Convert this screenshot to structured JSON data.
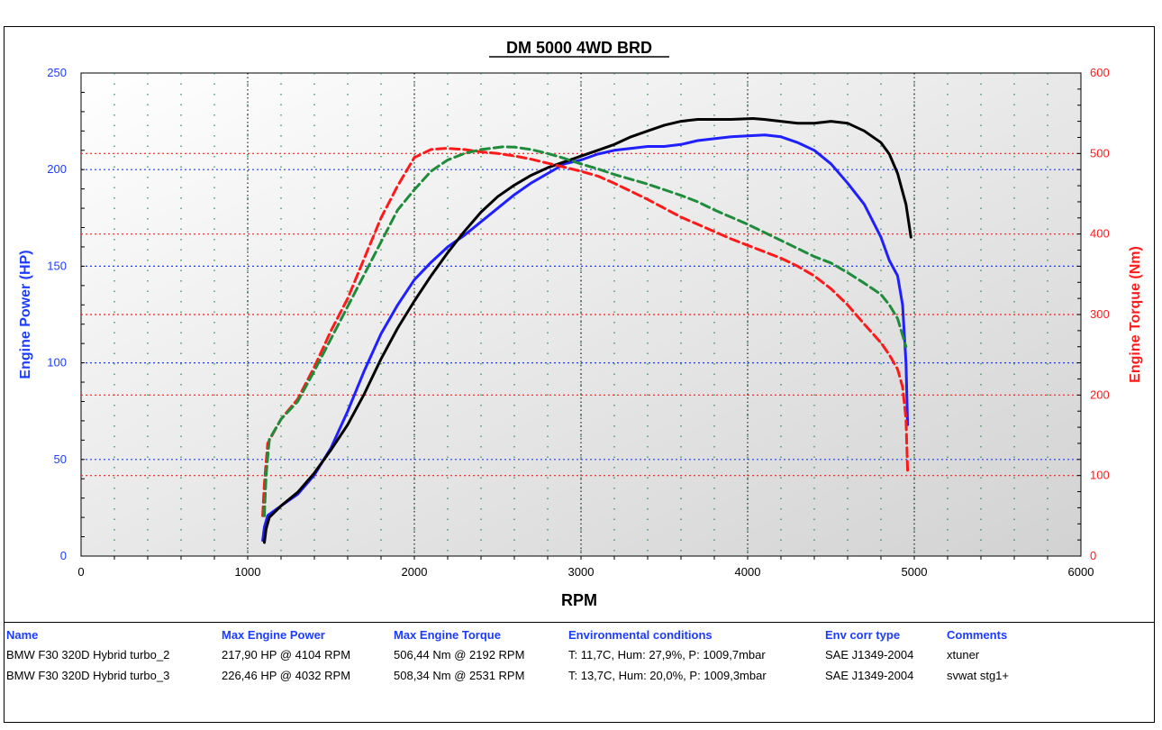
{
  "chart_data": {
    "type": "line",
    "title": "DM 5000 4WD BRD",
    "xlabel": "RPM",
    "ylabel_left": "Engine Power (HP)",
    "ylabel_right": "Engine Torque (Nm)",
    "xlim": [
      0,
      6000
    ],
    "ylim_left": [
      0,
      250
    ],
    "ylim_right": [
      0,
      600
    ],
    "x_ticks": [
      "0",
      "1000",
      "2000",
      "3000",
      "4000",
      "5000",
      "6000"
    ],
    "y_left_ticks": [
      "0",
      "50",
      "100",
      "150",
      "200",
      "250"
    ],
    "y_right_ticks": [
      "0",
      "100",
      "200",
      "300",
      "400",
      "500",
      "600"
    ],
    "grid": true,
    "colors": {
      "left_axis": "#1c3cff",
      "right_axis": "#ff1a1a",
      "plot_bg_light": "#ffffff",
      "plot_bg_dark": "#d2d2d2"
    },
    "series": [
      {
        "axis": "left",
        "quantity": "power",
        "run": "BMW F30 320D Hybrid turbo_2",
        "color": "#1f1fff",
        "dash": "solid",
        "x": [
          1090,
          1100,
          1120,
          1200,
          1300,
          1400,
          1500,
          1600,
          1700,
          1800,
          1900,
          2000,
          2100,
          2200,
          2300,
          2400,
          2500,
          2600,
          2700,
          2800,
          2900,
          3000,
          3100,
          3200,
          3300,
          3400,
          3500,
          3600,
          3700,
          3800,
          3900,
          4000,
          4104,
          4200,
          4300,
          4400,
          4500,
          4600,
          4700,
          4800,
          4850,
          4900,
          4930,
          4950,
          4960
        ],
        "y": [
          8,
          15,
          21,
          26,
          32,
          42,
          56,
          75,
          96,
          115,
          130,
          143,
          152,
          160,
          166,
          173,
          180,
          187,
          193,
          198,
          203,
          205,
          208,
          210,
          211,
          212,
          212,
          213,
          215,
          216,
          217,
          217.5,
          217.9,
          217,
          214,
          210,
          203,
          193,
          182,
          165,
          153,
          145,
          130,
          100,
          68
        ]
      },
      {
        "axis": "left",
        "quantity": "power",
        "run": "BMW F30 320D Hybrid turbo_3",
        "color": "#000000",
        "dash": "solid",
        "x": [
          1100,
          1110,
          1130,
          1200,
          1300,
          1400,
          1500,
          1600,
          1700,
          1800,
          1900,
          2000,
          2100,
          2200,
          2300,
          2400,
          2500,
          2600,
          2700,
          2800,
          2900,
          3000,
          3100,
          3200,
          3300,
          3400,
          3500,
          3600,
          3700,
          3800,
          3900,
          4032,
          4100,
          4200,
          4300,
          4400,
          4500,
          4600,
          4700,
          4800,
          4850,
          4900,
          4950,
          4980
        ],
        "y": [
          7,
          14,
          20,
          26,
          33,
          43,
          55,
          68,
          84,
          102,
          118,
          132,
          145,
          157,
          168,
          178,
          186,
          192,
          197,
          201,
          204,
          207,
          210,
          213,
          217,
          220,
          223,
          225,
          226,
          226,
          226,
          226.46,
          226,
          225,
          224,
          224,
          225,
          224,
          220,
          214,
          208,
          198,
          182,
          165
        ]
      },
      {
        "axis": "right",
        "quantity": "torque",
        "run": "BMW F30 320D Hybrid turbo_2",
        "color": "#ff1a1a",
        "dash": "dashed",
        "x": [
          1090,
          1100,
          1120,
          1200,
          1300,
          1400,
          1500,
          1600,
          1700,
          1800,
          1900,
          2000,
          2100,
          2192,
          2300,
          2400,
          2500,
          2600,
          2700,
          2800,
          2900,
          3000,
          3100,
          3200,
          3300,
          3400,
          3500,
          3600,
          3700,
          3800,
          3900,
          4000,
          4100,
          4200,
          4300,
          4400,
          4500,
          4600,
          4700,
          4800,
          4850,
          4900,
          4930,
          4950,
          4960
        ],
        "y": [
          50,
          90,
          140,
          170,
          195,
          235,
          280,
          320,
          370,
          420,
          460,
          495,
          505,
          506.44,
          505,
          502,
          500,
          497,
          493,
          488,
          483,
          478,
          472,
          463,
          453,
          443,
          432,
          421,
          412,
          403,
          394,
          386,
          378,
          370,
          360,
          348,
          332,
          312,
          288,
          265,
          250,
          232,
          210,
          170,
          105
        ]
      },
      {
        "axis": "right",
        "quantity": "torque",
        "run": "BMW F30 320D Hybrid turbo_3",
        "color": "#1f8c3c",
        "dash": "dashed",
        "x": [
          1100,
          1110,
          1130,
          1200,
          1300,
          1400,
          1500,
          1600,
          1700,
          1800,
          1900,
          2000,
          2100,
          2200,
          2300,
          2400,
          2531,
          2600,
          2700,
          2800,
          2900,
          3000,
          3100,
          3200,
          3300,
          3400,
          3500,
          3600,
          3700,
          3800,
          3900,
          4000,
          4100,
          4200,
          4300,
          4400,
          4500,
          4600,
          4700,
          4800,
          4850,
          4900,
          4950
        ],
        "y": [
          50,
          100,
          145,
          170,
          192,
          230,
          270,
          310,
          350,
          390,
          430,
          455,
          478,
          492,
          500,
          505,
          508.34,
          508,
          505,
          500,
          494,
          487,
          481,
          474,
          468,
          462,
          455,
          448,
          440,
          430,
          421,
          412,
          402,
          392,
          382,
          372,
          364,
          352,
          339,
          325,
          312,
          295,
          260
        ]
      }
    ]
  },
  "results_table": {
    "headers": [
      "Name",
      "Max Engine Power",
      "Max Engine Torque",
      "Environmental conditions",
      "Env corr type",
      "Comments"
    ],
    "rows": [
      [
        "BMW F30 320D Hybrid turbo_2",
        "217,90 HP @ 4104 RPM",
        "506,44 Nm @ 2192 RPM",
        "T: 11,7C, Hum: 27,9%, P: 1009,7mbar",
        "SAE J1349-2004",
        "xtuner"
      ],
      [
        "BMW F30 320D Hybrid turbo_3",
        "226,46 HP @ 4032 RPM",
        "508,34 Nm @ 2531 RPM",
        "T: 13,7C, Hum: 20,0%, P: 1009,3mbar",
        "SAE J1349-2004",
        "svwat stg1+"
      ]
    ]
  }
}
